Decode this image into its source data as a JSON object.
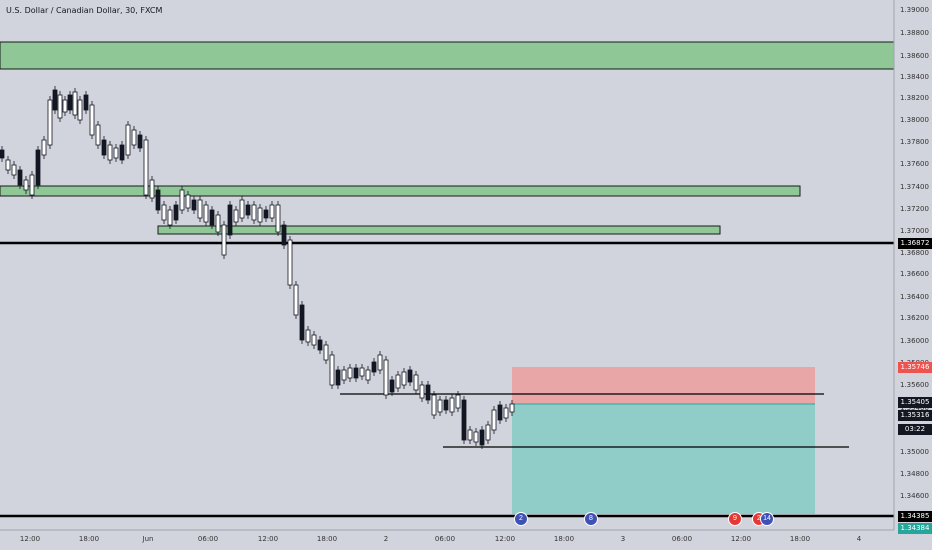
{
  "header": {
    "title": "U.S. Dollar / Canadian Dollar, 30, FXCM"
  },
  "price_axis": {
    "labels": [
      "1.39000",
      "1.38800",
      "1.38600",
      "1.38400",
      "1.38200",
      "1.38000",
      "1.37800",
      "1.37600",
      "1.37400",
      "1.37200",
      "1.37000",
      "1.36800",
      "1.36600",
      "1.36400",
      "1.36200",
      "1.36000",
      "1.35800",
      "1.35600",
      "1.35400",
      "1.35200",
      "1.35000",
      "1.34800",
      "1.34600",
      "1.34400"
    ],
    "tags": [
      {
        "label": "1.36872",
        "bg": "#000000"
      },
      {
        "label": "1.35746",
        "bg": "#ef5350"
      },
      {
        "label": "1.35405",
        "bg": "#131722"
      },
      {
        "label": "1.35316",
        "bg": "#131722"
      },
      {
        "label": "03:22",
        "bg": "#131722"
      },
      {
        "label": "1.34385",
        "bg": "#000000"
      },
      {
        "label": "1.34384",
        "bg": "#26a69a"
      }
    ]
  },
  "time_axis": {
    "labels": [
      "12:00",
      "18:00",
      "Jun",
      "06:00",
      "12:00",
      "18:00",
      "2",
      "06:00",
      "12:00",
      "18:00",
      "3",
      "06:00",
      "12:00",
      "18:00",
      "4"
    ]
  },
  "events": {
    "icons": [
      "us-flag-icon",
      "us-flag-icon",
      "ca-flag-icon",
      "ca-flag-icon",
      "us-flag-icon"
    ],
    "labels": [
      "2",
      "8",
      "9",
      "2",
      "14"
    ]
  },
  "colors": {
    "zone": "#8fc797",
    "stop": "#ef9a9a",
    "target": "#80cbc4",
    "candle_up": "#ffffff",
    "candle_down": "#131722"
  }
}
